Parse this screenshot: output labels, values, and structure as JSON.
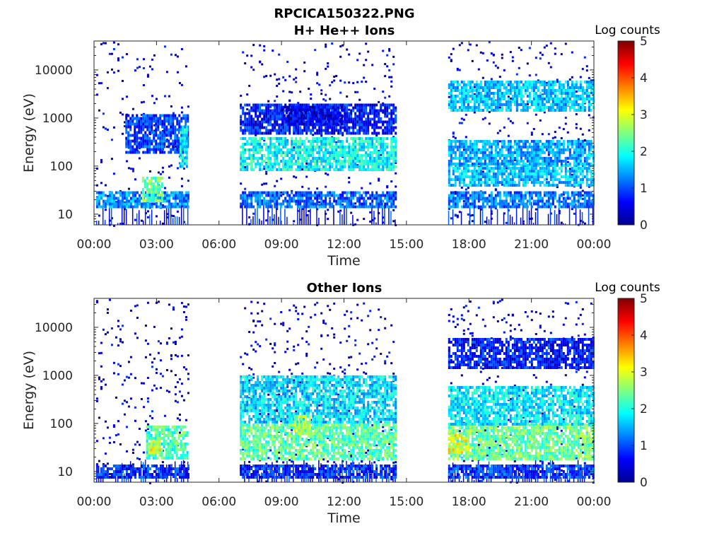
{
  "figure": {
    "filename": "RPCICA150322.PNG"
  },
  "colormap": [
    "#00008f",
    "#0000ff",
    "#0080ff",
    "#00ffff",
    "#80ff80",
    "#ffff00",
    "#ff8000",
    "#ff0000",
    "#800000"
  ],
  "chart_data": [
    {
      "type": "heatmap",
      "title": "H+ He++ Ions",
      "xlabel": "Time",
      "ylabel": "Energy (eV)",
      "x_ticks": [
        "00:00",
        "03:00",
        "06:00",
        "09:00",
        "12:00",
        "15:00",
        "18:00",
        "21:00",
        "00:00"
      ],
      "x_range_hours": [
        0,
        24
      ],
      "y_ticks": [
        "10",
        "100",
        "1000",
        "10000"
      ],
      "y_scale": "log",
      "y_range": [
        6,
        40000
      ],
      "colorbar": {
        "label": "Log counts",
        "ticks": [
          "0",
          "1",
          "2",
          "3",
          "4",
          "5"
        ],
        "range": [
          0,
          5
        ]
      },
      "data_intervals_hours": [
        [
          0.1,
          4.5
        ],
        [
          7.0,
          14.5
        ],
        [
          17.0,
          24.0
        ]
      ],
      "bands": [
        {
          "from_h": 0.1,
          "to_h": 4.5,
          "e_low": 14,
          "e_high": 30,
          "level": 1.3
        },
        {
          "from_h": 1.5,
          "to_h": 4.5,
          "e_low": 200,
          "e_high": 1200,
          "level": 0.9
        },
        {
          "from_h": 2.3,
          "to_h": 3.3,
          "e_low": 20,
          "e_high": 60,
          "level": 2.4
        },
        {
          "from_h": 4.1,
          "to_h": 4.5,
          "e_low": 100,
          "e_high": 700,
          "level": 1.8
        },
        {
          "from_h": 7.0,
          "to_h": 14.5,
          "e_low": 14,
          "e_high": 30,
          "level": 1.1
        },
        {
          "from_h": 7.0,
          "to_h": 14.5,
          "e_low": 90,
          "e_high": 400,
          "level": 1.9
        },
        {
          "from_h": 7.0,
          "to_h": 14.5,
          "e_low": 500,
          "e_high": 2000,
          "level": 0.7
        },
        {
          "from_h": 9.0,
          "to_h": 12.0,
          "e_low": 700,
          "e_high": 1800,
          "level": 0.5
        },
        {
          "from_h": 17.0,
          "to_h": 24.0,
          "e_low": 14,
          "e_high": 30,
          "level": 1.2
        },
        {
          "from_h": 17.0,
          "to_h": 24.0,
          "e_low": 40,
          "e_high": 110,
          "level": 1.6
        },
        {
          "from_h": 17.0,
          "to_h": 24.0,
          "e_low": 110,
          "e_high": 350,
          "level": 1.4
        },
        {
          "from_h": 17.0,
          "to_h": 24.0,
          "e_low": 1500,
          "e_high": 6000,
          "level": 1.6
        }
      ]
    },
    {
      "type": "heatmap",
      "title": "Other Ions",
      "xlabel": "Time",
      "ylabel": "Energy (eV)",
      "x_ticks": [
        "00:00",
        "03:00",
        "06:00",
        "09:00",
        "12:00",
        "15:00",
        "18:00",
        "21:00",
        "00:00"
      ],
      "x_range_hours": [
        0,
        24
      ],
      "y_ticks": [
        "10",
        "100",
        "1000",
        "10000"
      ],
      "y_scale": "log",
      "y_range": [
        6,
        40000
      ],
      "colorbar": {
        "label": "Log counts",
        "ticks": [
          "0",
          "1",
          "2",
          "3",
          "4",
          "5"
        ],
        "range": [
          0,
          5
        ]
      },
      "data_intervals_hours": [
        [
          0.1,
          4.5
        ],
        [
          7.0,
          14.5
        ],
        [
          17.0,
          24.0
        ]
      ],
      "bands": [
        {
          "from_h": 0.1,
          "to_h": 4.5,
          "e_low": 8,
          "e_high": 14,
          "level": 0.8
        },
        {
          "from_h": 2.5,
          "to_h": 4.5,
          "e_low": 18,
          "e_high": 90,
          "level": 2.2
        },
        {
          "from_h": 2.6,
          "to_h": 3.2,
          "e_low": 25,
          "e_high": 45,
          "level": 3.0
        },
        {
          "from_h": 7.0,
          "to_h": 14.5,
          "e_low": 8,
          "e_high": 14,
          "level": 0.8
        },
        {
          "from_h": 7.0,
          "to_h": 14.5,
          "e_low": 18,
          "e_high": 100,
          "level": 2.3
        },
        {
          "from_h": 7.0,
          "to_h": 14.5,
          "e_low": 100,
          "e_high": 1000,
          "level": 1.7
        },
        {
          "from_h": 9.6,
          "to_h": 10.4,
          "e_low": 60,
          "e_high": 150,
          "level": 2.8
        },
        {
          "from_h": 17.0,
          "to_h": 24.0,
          "e_low": 8,
          "e_high": 14,
          "level": 0.9
        },
        {
          "from_h": 17.0,
          "to_h": 24.0,
          "e_low": 18,
          "e_high": 100,
          "level": 2.4
        },
        {
          "from_h": 17.0,
          "to_h": 18.0,
          "e_low": 25,
          "e_high": 60,
          "level": 3.0
        },
        {
          "from_h": 17.0,
          "to_h": 24.0,
          "e_low": 100,
          "e_high": 600,
          "level": 1.8
        },
        {
          "from_h": 17.0,
          "to_h": 24.0,
          "e_low": 1500,
          "e_high": 6000,
          "level": 0.7
        }
      ]
    }
  ]
}
